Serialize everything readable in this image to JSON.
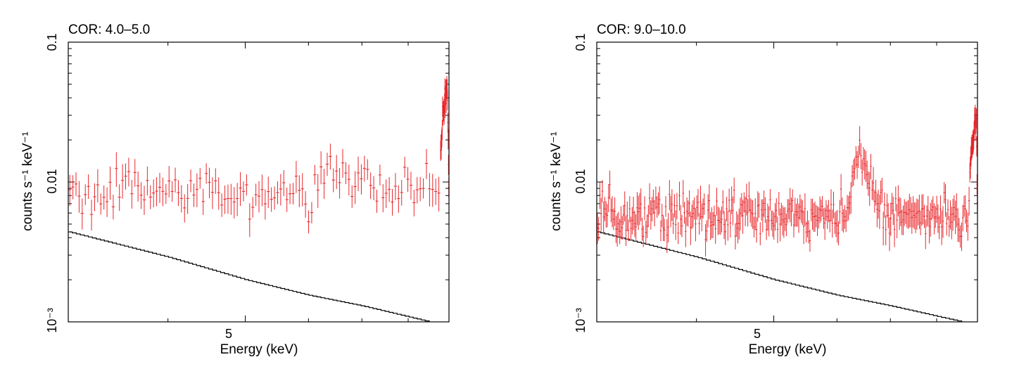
{
  "colors": {
    "data": "#e8262a",
    "model": "#000000",
    "axes": "#000000",
    "background": "#ffffff"
  },
  "chart_data": [
    {
      "type": "line",
      "title": "COR: 4.0–5.0",
      "xlabel": "Energy (keV)",
      "ylabel": "counts s⁻¹ keV⁻¹",
      "xscale": "log",
      "yscale": "log",
      "xlim": [
        3.0,
        9.0
      ],
      "ylim": [
        0.001,
        0.1
      ],
      "xticks_labeled": [
        5
      ],
      "xticks_minor": [
        4,
        6,
        7,
        8
      ],
      "ytick_labels": [
        {
          "value": 0.1,
          "label": "0.1"
        },
        {
          "value": 0.01,
          "label": "0.01"
        },
        {
          "value": 0.001,
          "label": "10⁻³"
        }
      ],
      "data_points": 120,
      "series": [
        {
          "name": "data",
          "style": "crosses",
          "x_range": [
            3.0,
            9.0
          ],
          "y_level": 0.0085,
          "y_scatter": 0.16,
          "y_err_rel": 0.22,
          "bumps": [
            {
              "x": 6.4,
              "width": 0.12,
              "amp": 0.0035
            },
            {
              "x": 6.7,
              "width": 0.2,
              "amp": 0.0015
            }
          ],
          "edge_peak": {
            "x_start": 8.78,
            "x_end": 8.95,
            "y_max": 0.05
          },
          "x_end": 9.0,
          "y_end": 0.009
        },
        {
          "name": "model",
          "style": "step",
          "points": [
            [
              3.0,
              0.0044
            ],
            [
              4.0,
              0.0029
            ],
            [
              5.0,
              0.002
            ],
            [
              6.0,
              0.00155
            ],
            [
              7.0,
              0.0013
            ],
            [
              8.5,
              0.001
            ]
          ]
        }
      ]
    },
    {
      "type": "line",
      "title": "COR: 9.0–10.0",
      "xlabel": "Energy (keV)",
      "ylabel": "counts s⁻¹ keV⁻¹",
      "xscale": "log",
      "yscale": "log",
      "xlim": [
        3.0,
        9.0
      ],
      "ylim": [
        0.001,
        0.1
      ],
      "xticks_labeled": [
        5
      ],
      "xticks_minor": [
        4,
        6,
        7,
        8
      ],
      "ytick_labels": [
        {
          "value": 0.1,
          "label": "0.1"
        },
        {
          "value": 0.01,
          "label": "0.01"
        },
        {
          "value": 0.001,
          "label": "10⁻³"
        }
      ],
      "data_points": 300,
      "series": [
        {
          "name": "data",
          "style": "crosses",
          "x_range": [
            3.0,
            9.0
          ],
          "y_level": 0.0058,
          "y_scatter": 0.17,
          "y_err_rel": 0.22,
          "bumps": [
            {
              "x": 6.4,
              "width": 0.1,
              "amp": 0.009
            },
            {
              "x": 6.65,
              "width": 0.15,
              "amp": 0.002
            }
          ],
          "edge_peak": {
            "x_start": 8.8,
            "x_end": 8.97,
            "y_max": 0.03
          },
          "x_end": 9.0,
          "y_end": 0.007
        },
        {
          "name": "model",
          "style": "step",
          "points": [
            [
              3.0,
              0.0044
            ],
            [
              4.0,
              0.0029
            ],
            [
              5.0,
              0.002
            ],
            [
              6.0,
              0.00155
            ],
            [
              7.0,
              0.0013
            ],
            [
              8.6,
              0.001
            ]
          ]
        }
      ]
    }
  ]
}
